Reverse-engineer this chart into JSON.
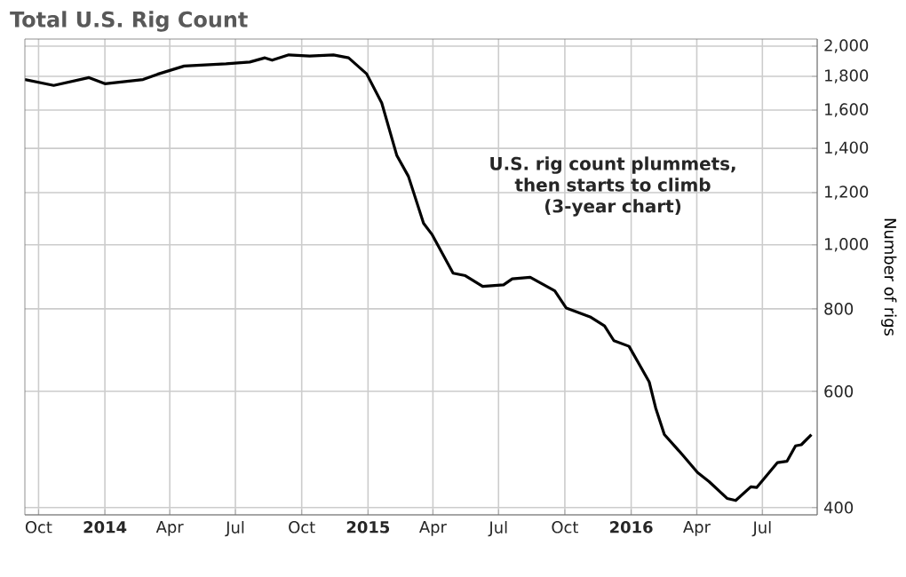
{
  "chart_data": {
    "type": "line",
    "title": "Total U.S. Rig Count",
    "ylabel": "Number of rigs",
    "annotations": [
      "U.S. rig count plummets, then starts to climb (3-year chart)"
    ],
    "x": [
      "2013-09-12",
      "2013-10-22",
      "2013-12-10",
      "2014-01-01",
      "2014-02-23",
      "2014-03-15",
      "2014-04-21",
      "2014-06-18",
      "2014-07-21",
      "2014-08-11",
      "2014-08-21",
      "2014-09-13",
      "2014-10-12",
      "2014-11-14",
      "2014-12-05",
      "2014-12-30",
      "2015-01-20",
      "2015-02-10",
      "2015-02-26",
      "2015-03-19",
      "2015-03-31",
      "2015-04-29",
      "2015-05-16",
      "2015-06-09",
      "2015-07-08",
      "2015-07-20",
      "2015-08-14",
      "2015-09-17",
      "2015-10-03",
      "2015-11-05",
      "2015-11-25",
      "2015-12-08",
      "2015-12-29",
      "2016-01-14",
      "2016-01-26",
      "2016-02-04",
      "2016-02-16",
      "2016-03-12",
      "2016-04-02",
      "2016-04-18",
      "2016-05-13",
      "2016-05-25",
      "2016-06-15",
      "2016-06-23",
      "2016-07-22",
      "2016-08-04",
      "2016-08-16",
      "2016-08-24",
      "2016-09-07"
    ],
    "series": [
      {
        "color": "#000000",
        "values": [
          1780,
          1744,
          1792,
          1754,
          1780,
          1813,
          1866,
          1880,
          1892,
          1920,
          1904,
          1940,
          1932,
          1940,
          1920,
          1816,
          1640,
          1365,
          1270,
          1078,
          1036,
          906,
          898,
          865,
          870,
          888,
          893,
          852,
          802,
          778,
          754,
          716,
          702,
          654,
          620,
          566,
          516,
          481,
          452,
          438,
          413,
          410,
          430,
          429,
          468,
          470,
          496,
          498,
          516
        ]
      }
    ],
    "xlim": [
      "2013-09-12",
      "2016-09-15"
    ],
    "xticks": [
      {
        "value": "2013-10-01",
        "label": "Oct"
      },
      {
        "value": "2014-01-01",
        "label": "2014"
      },
      {
        "value": "2014-04-01",
        "label": "Apr"
      },
      {
        "value": "2014-07-01",
        "label": "Jul"
      },
      {
        "value": "2014-10-01",
        "label": "Oct"
      },
      {
        "value": "2015-01-01",
        "label": "2015"
      },
      {
        "value": "2015-04-01",
        "label": "Apr"
      },
      {
        "value": "2015-07-01",
        "label": "Jul"
      },
      {
        "value": "2015-10-01",
        "label": "Oct"
      },
      {
        "value": "2016-01-01",
        "label": "2016"
      },
      {
        "value": "2016-04-01",
        "label": "Apr"
      },
      {
        "value": "2016-07-01",
        "label": "Jul"
      }
    ],
    "ylim": [
      390,
      2050
    ],
    "log": true,
    "yticks": [
      400,
      600,
      800,
      {
        "value": 1000,
        "label": "1,000"
      },
      {
        "value": 1200,
        "label": "1,200"
      },
      {
        "value": 1400,
        "label": "1,400"
      },
      {
        "value": 1600,
        "label": "1,600"
      },
      {
        "value": 1800,
        "label": "1,800"
      },
      {
        "value": 2000,
        "label": "2,000"
      }
    ],
    "grid": true,
    "marker": "none",
    "line_style": "solid"
  }
}
